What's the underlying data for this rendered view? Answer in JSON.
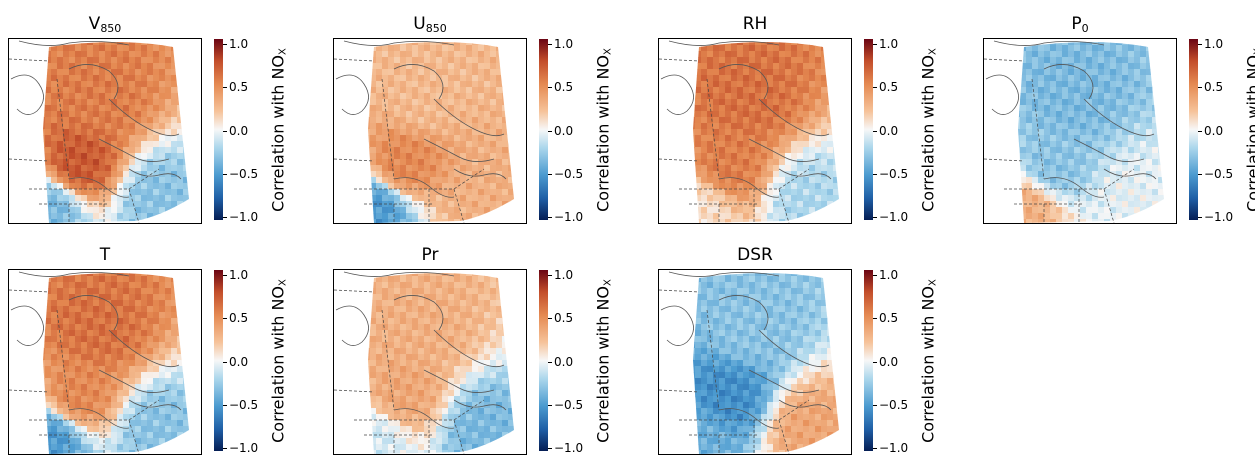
{
  "colorbar": {
    "label": "Correlation with NO",
    "label_sub": "X",
    "ticks": [
      "1.0",
      "0.5",
      "0.0",
      "−0.5",
      "−1.0"
    ],
    "tick_values": [
      1.0,
      0.5,
      0.0,
      -0.5,
      -1.0
    ],
    "colormap": "RdBu_r",
    "colors": {
      "high": "#6a0513",
      "mid": "#f7f7f7",
      "low": "#051d54"
    }
  },
  "chart_data": [
    {
      "type": "heatmap",
      "title": "V",
      "title_sub": "850",
      "vmin": -1.0,
      "vmax": 1.0,
      "description_values": {
        "north_interior": 0.55,
        "southern_quebec": 0.7,
        "us_northeast": -0.35,
        "atlantic_south": -0.3
      }
    },
    {
      "type": "heatmap",
      "title": "U",
      "title_sub": "850",
      "vmin": -1.0,
      "vmax": 1.0,
      "description_values": {
        "north_interior": 0.25,
        "southern_quebec": 0.5,
        "us_northeast": -0.5,
        "atlantic_south": 0.3
      }
    },
    {
      "type": "heatmap",
      "title": "RH",
      "title_sub": "",
      "vmin": -1.0,
      "vmax": 1.0,
      "description_values": {
        "north_interior": 0.6,
        "southern_quebec": 0.55,
        "us_northeast": 0.1,
        "atlantic_south": -0.2
      }
    },
    {
      "type": "heatmap",
      "title": "P",
      "title_sub": "0",
      "vmin": -1.0,
      "vmax": 1.0,
      "description_values": {
        "north_interior": -0.35,
        "southern_quebec": -0.3,
        "us_northeast": 0.3,
        "atlantic_south": -0.05
      }
    },
    {
      "type": "heatmap",
      "title": "T",
      "title_sub": "",
      "vmin": -1.0,
      "vmax": 1.0,
      "description_values": {
        "north_interior": 0.6,
        "southern_quebec": 0.5,
        "us_northeast": -0.5,
        "atlantic_south": -0.3
      }
    },
    {
      "type": "heatmap",
      "title": "Pr",
      "title_sub": "",
      "vmin": -1.0,
      "vmax": 1.0,
      "description_values": {
        "north_interior": 0.3,
        "southern_quebec": 0.35,
        "us_northeast": -0.1,
        "atlantic_south": -0.35
      }
    },
    {
      "type": "heatmap",
      "title": "DSR",
      "title_sub": "",
      "vmin": -1.0,
      "vmax": 1.0,
      "description_values": {
        "north_interior": -0.3,
        "southern_quebec": -0.55,
        "us_northeast": -0.4,
        "atlantic_south": 0.35
      }
    }
  ]
}
